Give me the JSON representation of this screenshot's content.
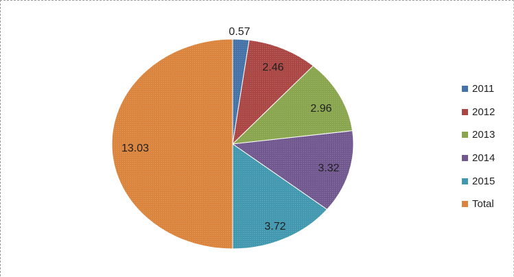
{
  "chart_data": {
    "type": "pie",
    "categories": [
      "2011",
      "2012",
      "2013",
      "2014",
      "2015",
      "Total"
    ],
    "values": [
      0.57,
      2.46,
      2.96,
      3.32,
      3.72,
      13.03
    ],
    "data_labels": [
      "0.57",
      "2.46",
      "2.96",
      "3.32",
      "3.72",
      "13.03"
    ],
    "colors": [
      "#4572a7",
      "#aa4643",
      "#89a54e",
      "#71588f",
      "#4198af",
      "#db843d"
    ],
    "start_angle": "12 o'clock",
    "direction": "clockwise",
    "legend_position": "right"
  }
}
